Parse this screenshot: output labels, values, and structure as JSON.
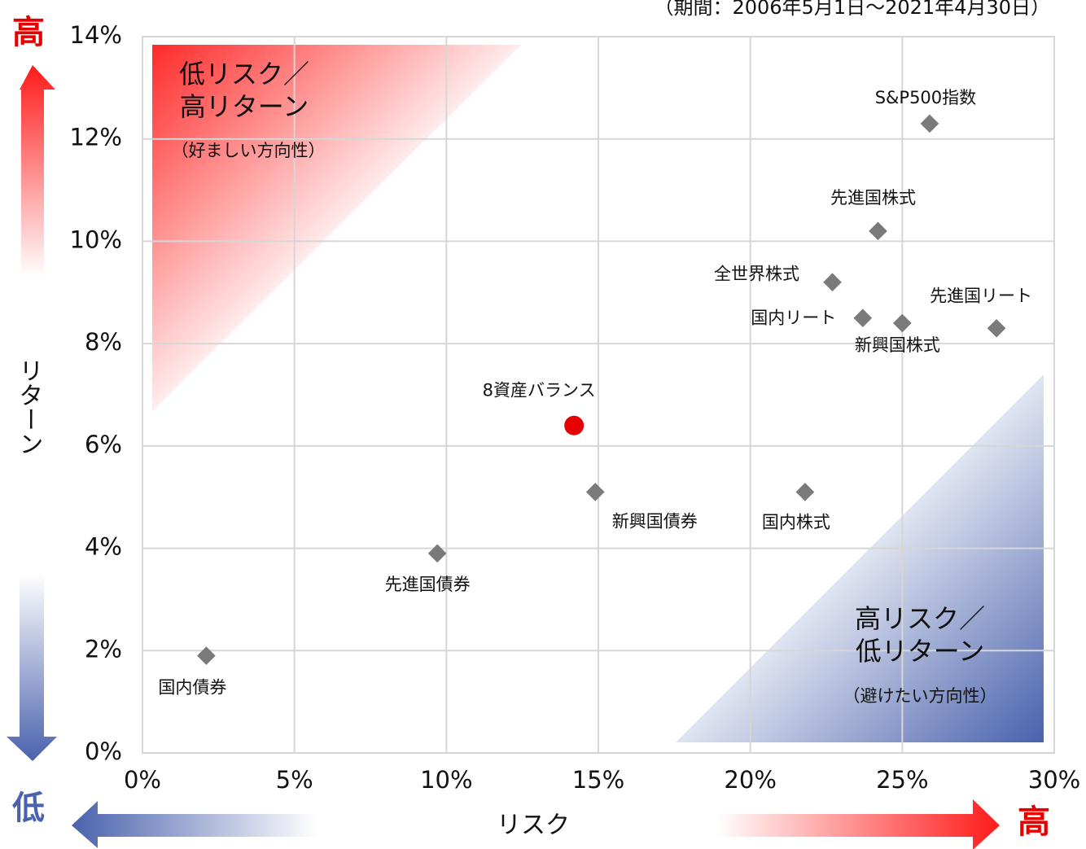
{
  "chart_data": {
    "type": "scatter",
    "note": "（期間：2006年5月1日～2021年4月30日）",
    "xlabel": "リスク",
    "ylabel": "リターン",
    "high_label": "高",
    "low_label": "低",
    "quadrants": [
      {
        "lines": [
          "低リスク／",
          "高リターン"
        ],
        "sub": "（好ましい方向性）",
        "color": "#ff2a2a"
      },
      {
        "lines": [
          "高リスク／",
          "低リターン"
        ],
        "sub": "（避けたい方向性）",
        "color": "#4a62ad"
      }
    ],
    "marker_color": "#7a7a7a",
    "highlight_color": "#e60000",
    "points": [
      {
        "label": "国内債券",
        "x": 2.1,
        "y": 1.9
      },
      {
        "label": "先進国債券",
        "x": 9.7,
        "y": 3.9
      },
      {
        "label": "新興国債券",
        "x": 14.9,
        "y": 5.1
      },
      {
        "label": "8資産バランス",
        "x": 14.2,
        "y": 6.4,
        "highlight": true
      },
      {
        "label": "国内株式",
        "x": 21.8,
        "y": 5.1
      },
      {
        "label": "全世界株式",
        "x": 22.7,
        "y": 9.2
      },
      {
        "label": "国内リート",
        "x": 23.7,
        "y": 8.5
      },
      {
        "label": "新興国株式",
        "x": 25.0,
        "y": 8.4
      },
      {
        "label": "先進国リート",
        "x": 28.1,
        "y": 8.3
      },
      {
        "label": "先進国株式",
        "x": 24.2,
        "y": 10.2
      },
      {
        "label": "S&P500指数",
        "x": 25.9,
        "y": 12.3
      }
    ],
    "xlim": [
      0,
      30
    ],
    "xticks": [
      {
        "value": 0,
        "label": "0%"
      },
      {
        "value": 5,
        "label": "5%"
      },
      {
        "value": 10,
        "label": "10%"
      },
      {
        "value": 15,
        "label": "15%"
      },
      {
        "value": 20,
        "label": "20%"
      },
      {
        "value": 25,
        "label": "25%"
      },
      {
        "value": 30,
        "label": "30%"
      }
    ],
    "ylim": [
      0,
      14
    ],
    "yticks": [
      {
        "value": 0,
        "label": "0%"
      },
      {
        "value": 2,
        "label": "2%"
      },
      {
        "value": 4,
        "label": "4%"
      },
      {
        "value": 6,
        "label": "6%"
      },
      {
        "value": 8,
        "label": "8%"
      },
      {
        "value": 10,
        "label": "10%"
      },
      {
        "value": 12,
        "label": "12%"
      },
      {
        "value": 14,
        "label": "14%"
      }
    ],
    "grid": true
  }
}
